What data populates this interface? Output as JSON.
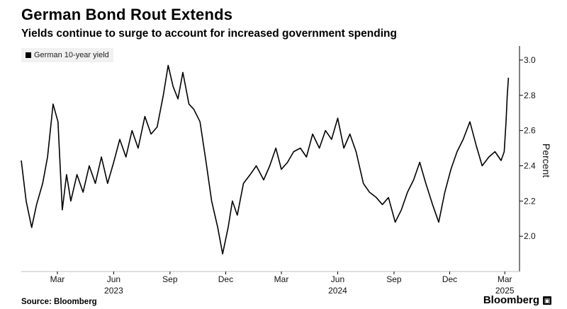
{
  "header": {
    "title": "German Bond Rout Extends",
    "subtitle": "Yields continue to surge to account for increased government spending"
  },
  "footer": {
    "source": "Source: Bloomberg",
    "brand": "Bloomberg",
    "brand_mark_icon": "bloomberg-terminal-icon"
  },
  "chart_data": {
    "type": "line",
    "title": "German Bond Rout Extends",
    "subtitle": "Yields continue to surge to account for increased government spending",
    "ylabel": "Percent",
    "ylim": [
      1.8,
      3.08
    ],
    "yticks": [
      2.0,
      2.2,
      2.4,
      2.6,
      2.8,
      3.0
    ],
    "ytick_labels": [
      "2.0",
      "2.2",
      "2.4",
      "2.6",
      "2.8",
      "3.0"
    ],
    "xlim": [
      "2023-01-01",
      "2025-03-10"
    ],
    "xticks": [
      {
        "date": "2023-03-01",
        "label": "Mar"
      },
      {
        "date": "2023-06-01",
        "label": "Jun"
      },
      {
        "date": "2023-09-01",
        "label": "Sep"
      },
      {
        "date": "2023-12-01",
        "label": "Dec"
      },
      {
        "date": "2024-03-01",
        "label": "Mar"
      },
      {
        "date": "2024-06-01",
        "label": "Jun"
      },
      {
        "date": "2024-09-01",
        "label": "Sep"
      },
      {
        "date": "2024-12-01",
        "label": "Dec"
      },
      {
        "date": "2025-03-01",
        "label": "Mar"
      }
    ],
    "year_labels": [
      {
        "date": "2023-06-01",
        "label": "2023"
      },
      {
        "date": "2024-06-01",
        "label": "2024"
      },
      {
        "date": "2025-03-01",
        "label": "2025"
      }
    ],
    "grid": false,
    "legend": "top-left",
    "series": [
      {
        "name": "German 10-year yield",
        "color": "#000000",
        "x": [
          "2023-01-01",
          "2023-01-09",
          "2023-01-18",
          "2023-01-26",
          "2023-02-05",
          "2023-02-13",
          "2023-02-22",
          "2023-03-02",
          "2023-03-09",
          "2023-03-16",
          "2023-03-23",
          "2023-04-02",
          "2023-04-12",
          "2023-04-22",
          "2023-05-02",
          "2023-05-12",
          "2023-05-22",
          "2023-06-01",
          "2023-06-11",
          "2023-06-21",
          "2023-07-01",
          "2023-07-11",
          "2023-07-22",
          "2023-08-01",
          "2023-08-11",
          "2023-08-21",
          "2023-08-29",
          "2023-09-06",
          "2023-09-14",
          "2023-09-22",
          "2023-10-02",
          "2023-10-10",
          "2023-10-20",
          "2023-10-30",
          "2023-11-08",
          "2023-11-18",
          "2023-11-26",
          "2023-12-05",
          "2023-12-12",
          "2023-12-20",
          "2023-12-30",
          "2024-01-10",
          "2024-01-20",
          "2024-02-01",
          "2024-02-11",
          "2024-02-21",
          "2024-03-01",
          "2024-03-11",
          "2024-03-21",
          "2024-04-01",
          "2024-04-11",
          "2024-04-21",
          "2024-05-02",
          "2024-05-12",
          "2024-05-22",
          "2024-06-01",
          "2024-06-11",
          "2024-06-21",
          "2024-07-01",
          "2024-07-13",
          "2024-07-23",
          "2024-08-03",
          "2024-08-13",
          "2024-08-23",
          "2024-09-03",
          "2024-09-13",
          "2024-09-23",
          "2024-10-03",
          "2024-10-13",
          "2024-10-23",
          "2024-11-03",
          "2024-11-13",
          "2024-11-23",
          "2024-12-03",
          "2024-12-13",
          "2024-12-23",
          "2025-01-03",
          "2025-01-13",
          "2025-01-23",
          "2025-02-03",
          "2025-02-13",
          "2025-02-23",
          "2025-02-28",
          "2025-03-03",
          "2025-03-05",
          "2025-03-07"
        ],
        "values": [
          2.43,
          2.2,
          2.05,
          2.18,
          2.3,
          2.45,
          2.75,
          2.65,
          2.15,
          2.35,
          2.2,
          2.35,
          2.25,
          2.4,
          2.3,
          2.45,
          2.3,
          2.42,
          2.55,
          2.45,
          2.6,
          2.5,
          2.68,
          2.58,
          2.62,
          2.8,
          2.97,
          2.85,
          2.78,
          2.93,
          2.75,
          2.72,
          2.65,
          2.42,
          2.2,
          2.05,
          1.9,
          2.05,
          2.2,
          2.12,
          2.3,
          2.35,
          2.4,
          2.32,
          2.4,
          2.5,
          2.38,
          2.42,
          2.48,
          2.5,
          2.45,
          2.58,
          2.5,
          2.6,
          2.55,
          2.67,
          2.5,
          2.58,
          2.48,
          2.3,
          2.25,
          2.22,
          2.18,
          2.22,
          2.08,
          2.15,
          2.25,
          2.32,
          2.42,
          2.3,
          2.18,
          2.08,
          2.25,
          2.38,
          2.48,
          2.55,
          2.65,
          2.52,
          2.4,
          2.45,
          2.48,
          2.43,
          2.48,
          2.65,
          2.8,
          2.9
        ]
      }
    ]
  }
}
